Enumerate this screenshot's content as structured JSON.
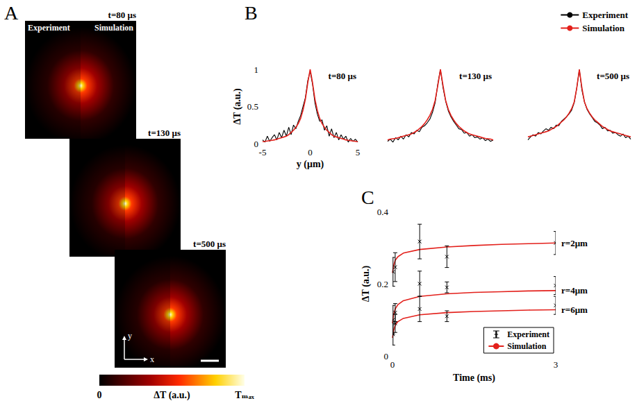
{
  "chart_data": [
    {
      "type": "image",
      "panel": "A",
      "left_label": "Experiment",
      "right_label": "Simulation",
      "times": [
        "t=80 μs",
        "t=130 μs",
        "t=500 μs"
      ],
      "axis_labels": {
        "x": "x",
        "y": "y"
      },
      "colorbar": {
        "title": "ΔT (a.u.)",
        "range": [
          0,
          1
        ],
        "ticks": [
          0,
          {
            "value": 1,
            "label": "Tₘₐₓ"
          }
        ]
      }
    },
    {
      "type": "line",
      "panel": "B",
      "title": "t=80 μs",
      "xlabel": "y (μm)",
      "ylabel": "ΔT (a.u.)",
      "x": [
        -5,
        -4.75,
        -4.5,
        -4.25,
        -4,
        -3.75,
        -3.5,
        -3.25,
        -3,
        -2.75,
        -2.5,
        -2.25,
        -2,
        -1.75,
        -1.5,
        -1.25,
        -1,
        -0.75,
        -0.5,
        -0.25,
        0,
        0.25,
        0.5,
        0.75,
        1,
        1.25,
        1.5,
        1.75,
        2,
        2.25,
        2.5,
        2.75,
        3,
        3.25,
        3.5,
        3.75,
        4,
        4.25,
        4.5,
        4.75,
        5
      ],
      "xlim": [
        -5,
        5
      ],
      "xticks": [
        -5,
        0,
        5
      ],
      "ylim": [
        0,
        1
      ],
      "yticks": [
        0,
        0.5,
        1
      ],
      "grid": false,
      "tick_labels": true,
      "legend": "upper right",
      "series": [
        {
          "name": "Experiment",
          "color": "#000000",
          "values": [
            0.05,
            0.02,
            0.1,
            0.03,
            0.08,
            0.12,
            0.05,
            0.15,
            0.08,
            0.18,
            0.1,
            0.22,
            0.12,
            0.25,
            0.2,
            0.3,
            0.38,
            0.5,
            0.62,
            0.85,
            0.97,
            0.8,
            0.55,
            0.4,
            0.3,
            0.32,
            0.18,
            0.24,
            0.1,
            0.2,
            0.08,
            0.15,
            0.05,
            0.12,
            0.06,
            0.1,
            0.02,
            0.07,
            0.03,
            0.06,
            0.02
          ]
        },
        {
          "name": "Simulation",
          "color": "#e3201b",
          "values": [
            0.025,
            0.03,
            0.035,
            0.04,
            0.045,
            0.05,
            0.06,
            0.07,
            0.08,
            0.09,
            0.1,
            0.12,
            0.15,
            0.18,
            0.22,
            0.27,
            0.34,
            0.45,
            0.6,
            0.82,
            1,
            0.82,
            0.6,
            0.45,
            0.34,
            0.27,
            0.22,
            0.18,
            0.15,
            0.12,
            0.1,
            0.09,
            0.08,
            0.07,
            0.06,
            0.05,
            0.045,
            0.04,
            0.035,
            0.03,
            0.025
          ]
        }
      ]
    },
    {
      "type": "line",
      "title": "t=130 μs",
      "x": [
        -5,
        -4.75,
        -4.5,
        -4.25,
        -4,
        -3.75,
        -3.5,
        -3.25,
        -3,
        -2.75,
        -2.5,
        -2.25,
        -2,
        -1.75,
        -1.5,
        -1.25,
        -1,
        -0.75,
        -0.5,
        -0.25,
        0,
        0.25,
        0.5,
        0.75,
        1,
        1.25,
        1.5,
        1.75,
        2,
        2.25,
        2.5,
        2.75,
        3,
        3.25,
        3.5,
        3.75,
        4,
        4.25,
        4.5,
        4.75,
        5
      ],
      "xlim": [
        -5,
        5
      ],
      "xticks": [
        -5,
        0,
        5
      ],
      "ylim": [
        0,
        1
      ],
      "yticks": [
        0,
        0.5,
        1
      ],
      "grid": false,
      "tick_labels": false,
      "series": [
        {
          "name": "Experiment",
          "color": "#000000",
          "values": [
            0.03,
            0.06,
            0.02,
            0.08,
            0.05,
            0.1,
            0.06,
            0.12,
            0.09,
            0.15,
            0.13,
            0.18,
            0.16,
            0.22,
            0.24,
            0.28,
            0.33,
            0.42,
            0.55,
            0.8,
            1,
            0.75,
            0.57,
            0.44,
            0.36,
            0.3,
            0.25,
            0.2,
            0.19,
            0.14,
            0.15,
            0.1,
            0.12,
            0.08,
            0.09,
            0.06,
            0.08,
            0.04,
            0.06,
            0.03,
            0.05
          ]
        },
        {
          "name": "Simulation",
          "color": "#e3201b",
          "values": [
            0.05,
            0.06,
            0.065,
            0.07,
            0.08,
            0.09,
            0.1,
            0.11,
            0.12,
            0.13,
            0.15,
            0.17,
            0.2,
            0.23,
            0.27,
            0.32,
            0.38,
            0.46,
            0.58,
            0.78,
            1,
            0.78,
            0.58,
            0.46,
            0.38,
            0.32,
            0.27,
            0.23,
            0.2,
            0.17,
            0.15,
            0.13,
            0.12,
            0.11,
            0.1,
            0.09,
            0.08,
            0.07,
            0.065,
            0.06,
            0.05
          ]
        }
      ]
    },
    {
      "type": "line",
      "title": "t=500 μs",
      "x": [
        -5,
        -4.75,
        -4.5,
        -4.25,
        -4,
        -3.75,
        -3.5,
        -3.25,
        -3,
        -2.75,
        -2.5,
        -2.25,
        -2,
        -1.75,
        -1.5,
        -1.25,
        -1,
        -0.75,
        -0.5,
        -0.25,
        0,
        0.25,
        0.5,
        0.75,
        1,
        1.25,
        1.5,
        1.75,
        2,
        2.25,
        2.5,
        2.75,
        3,
        3.25,
        3.5,
        3.75,
        4,
        4.25,
        4.5,
        4.75,
        5
      ],
      "xlim": [
        -5,
        5
      ],
      "xticks": [
        -5,
        0,
        5
      ],
      "ylim": [
        0,
        1
      ],
      "yticks": [
        0,
        0.5,
        1
      ],
      "grid": false,
      "tick_labels": false,
      "series": [
        {
          "name": "Experiment",
          "color": "#000000",
          "values": [
            0.05,
            0.09,
            0.12,
            0.1,
            0.15,
            0.13,
            0.17,
            0.2,
            0.18,
            0.22,
            0.2,
            0.25,
            0.24,
            0.3,
            0.33,
            0.36,
            0.4,
            0.45,
            0.55,
            0.75,
            1,
            0.72,
            0.56,
            0.46,
            0.4,
            0.35,
            0.3,
            0.28,
            0.25,
            0.2,
            0.22,
            0.17,
            0.18,
            0.14,
            0.15,
            0.12,
            0.1,
            0.13,
            0.08,
            0.1,
            0.06
          ]
        },
        {
          "name": "Simulation",
          "color": "#e3201b",
          "values": [
            0.09,
            0.1,
            0.11,
            0.12,
            0.13,
            0.14,
            0.15,
            0.16,
            0.17,
            0.19,
            0.21,
            0.23,
            0.26,
            0.29,
            0.32,
            0.36,
            0.41,
            0.47,
            0.56,
            0.75,
            1,
            0.75,
            0.56,
            0.47,
            0.41,
            0.36,
            0.32,
            0.29,
            0.26,
            0.23,
            0.21,
            0.19,
            0.17,
            0.16,
            0.15,
            0.14,
            0.13,
            0.12,
            0.11,
            0.1,
            0.09
          ]
        }
      ]
    },
    {
      "type": "scatter",
      "panel": "C",
      "xlabel": "Time (ms)",
      "ylabel": "ΔT (a.u.)",
      "xlim": [
        0,
        3
      ],
      "xticks": [
        0,
        3
      ],
      "ylim": [
        0,
        0.4
      ],
      "yticks": [
        0,
        0.2,
        0.4
      ],
      "grid": false,
      "tick_labels": true,
      "legend": "lower right",
      "series": [
        {
          "name": "Experiment",
          "type": "scatter",
          "marker": "x",
          "color": "#000000",
          "x": [
            0.01,
            0.05,
            0.5,
            1,
            3
          ],
          "values": [
            0.233,
            0.246,
            0.317,
            0.275,
            0.313
          ],
          "errors": [
            0.04,
            0.04,
            0.048,
            0.03,
            0.032
          ]
        },
        {
          "name": "Experiment",
          "type": "scatter",
          "marker": "x",
          "color": "#000000",
          "x": [
            0.01,
            0.05,
            0.5,
            1,
            3
          ],
          "values": [
            0.1,
            0.12,
            0.2,
            0.19,
            0.195
          ],
          "errors": [
            0.04,
            0.025,
            0.035,
            0.015,
            0.025
          ]
        },
        {
          "name": "Experiment",
          "type": "scatter",
          "marker": "x",
          "color": "#000000",
          "x": [
            0.01,
            0.05,
            0.5,
            1,
            3
          ],
          "values": [
            0.06,
            0.09,
            0.13,
            0.11,
            0.14
          ],
          "errors": [
            0.03,
            0.025,
            0.035,
            0.015,
            0.025
          ]
        },
        {
          "name": "Simulation",
          "type": "line",
          "color": "#e3201b",
          "label": "r=2μm",
          "x": [
            0,
            0.02,
            0.05,
            0.1,
            0.2,
            0.5,
            1,
            1.5,
            2,
            2.5,
            3
          ],
          "values": [
            0.23,
            0.25,
            0.265,
            0.275,
            0.285,
            0.295,
            0.302,
            0.306,
            0.309,
            0.311,
            0.313
          ]
        },
        {
          "name": "Simulation",
          "type": "line",
          "color": "#e3201b",
          "label": "r=4μm",
          "x": [
            0,
            0.02,
            0.05,
            0.1,
            0.2,
            0.5,
            1,
            1.5,
            2,
            2.5,
            3
          ],
          "values": [
            0.09,
            0.115,
            0.13,
            0.142,
            0.153,
            0.165,
            0.172,
            0.176,
            0.178,
            0.18,
            0.181
          ]
        },
        {
          "name": "Simulation",
          "type": "line",
          "color": "#e3201b",
          "label": "r=6μm",
          "x": [
            0,
            0.02,
            0.05,
            0.1,
            0.2,
            0.5,
            1,
            1.5,
            2,
            2.5,
            3
          ],
          "values": [
            0.05,
            0.07,
            0.085,
            0.095,
            0.104,
            0.114,
            0.12,
            0.123,
            0.125,
            0.127,
            0.128
          ]
        }
      ]
    }
  ]
}
